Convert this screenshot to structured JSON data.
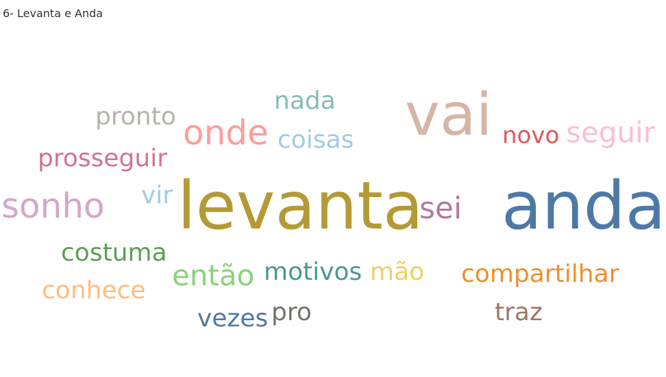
{
  "title": "6- Levanta e Anda",
  "chart_data": {
    "type": "wordcloud",
    "title": "6- Levanta e Anda",
    "words": [
      {
        "text": "levanta",
        "color": "#b49a35"
      },
      {
        "text": "anda",
        "color": "#4e79a7"
      },
      {
        "text": "vai",
        "color": "#d7b5a6"
      },
      {
        "text": "onde",
        "color": "#ff9d9a"
      },
      {
        "text": "sonho",
        "color": "#d4a6c8"
      },
      {
        "text": "seguir",
        "color": "#fabfd2"
      },
      {
        "text": "sei",
        "color": "#b07aa1"
      },
      {
        "text": "pronto",
        "color": "#bab0ac"
      },
      {
        "text": "prosseguir",
        "color": "#d37295"
      },
      {
        "text": "costuma",
        "color": "#59a14f"
      },
      {
        "text": "conhece",
        "color": "#ffbe7d"
      },
      {
        "text": "então",
        "color": "#8cd17d"
      },
      {
        "text": "compartilhar",
        "color": "#f28e2b"
      },
      {
        "text": "nada",
        "color": "#86bcb6"
      },
      {
        "text": "coisas",
        "color": "#a0cbe8"
      },
      {
        "text": "novo",
        "color": "#e15759"
      },
      {
        "text": "motivos",
        "color": "#499894"
      },
      {
        "text": "mão",
        "color": "#f1ce63"
      },
      {
        "text": "vezes",
        "color": "#4e79a7"
      },
      {
        "text": "pro",
        "color": "#79706e"
      },
      {
        "text": "traz",
        "color": "#9d7660"
      },
      {
        "text": "vir",
        "color": "#a0cbe8"
      }
    ]
  }
}
